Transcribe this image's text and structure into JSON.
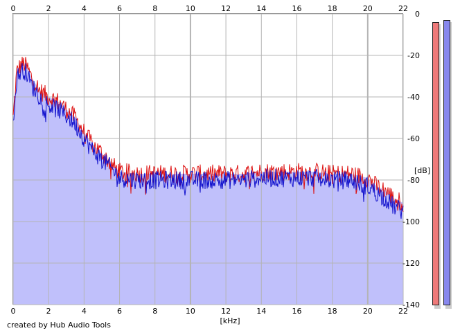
{
  "footer": {
    "credit": "created by Hub Audio Tools"
  },
  "colors": {
    "channel_1": "#dd1111",
    "channel_2": "#1111cc",
    "fill": "#c0c0fb",
    "grid": "#b4b4b4",
    "meter_1": "#ee7a7a",
    "meter_2": "#8888ee"
  },
  "chart_data": {
    "type": "area",
    "xlabel": "[kHz]",
    "ylabel": "[dB]",
    "xlim": [
      0,
      22
    ],
    "ylim": [
      -140,
      0
    ],
    "x_ticks": [
      "0",
      "2",
      "4",
      "6",
      "8",
      "10",
      "12",
      "14",
      "16",
      "18",
      "20",
      "22"
    ],
    "y_ticks": [
      "0",
      "-20",
      "-40",
      "-60",
      "-80",
      "-100",
      "-120",
      "-140"
    ],
    "grid": true,
    "legend": "none",
    "series": [
      {
        "x": [
          0,
          0.2,
          0.4,
          0.6,
          0.8,
          1,
          1.5,
          2,
          2.5,
          3,
          3.5,
          4,
          4.5,
          5,
          5.5,
          6,
          7,
          8,
          9,
          10,
          11,
          12,
          13,
          14,
          15,
          16,
          17,
          18,
          19,
          20,
          20.5,
          21,
          21.5,
          22
        ],
        "values": [
          -50,
          -28,
          -25,
          -24,
          -26,
          -30,
          -37,
          -40,
          -42,
          -46,
          -50,
          -57,
          -63,
          -67,
          -72,
          -76,
          -77,
          -77,
          -77,
          -77,
          -77,
          -77,
          -77,
          -76,
          -76,
          -76,
          -76,
          -77,
          -77,
          -79,
          -83,
          -85,
          -89,
          -91
        ]
      },
      {
        "x": [
          0,
          0.2,
          0.4,
          0.6,
          0.8,
          1,
          1.5,
          2,
          2.5,
          3,
          3.5,
          4,
          4.5,
          5,
          5.5,
          6,
          7,
          8,
          9,
          10,
          11,
          12,
          13,
          14,
          15,
          16,
          17,
          18,
          19,
          20,
          20.5,
          21,
          21.5,
          22
        ],
        "values": [
          -55,
          -31,
          -28,
          -27,
          -29,
          -34,
          -40,
          -44,
          -46,
          -49,
          -53,
          -60,
          -66,
          -70,
          -74,
          -79,
          -80,
          -80,
          -80,
          -80,
          -80,
          -80,
          -80,
          -79,
          -79,
          -79,
          -79,
          -80,
          -80,
          -83,
          -86,
          -89,
          -93,
          -95
        ]
      }
    ],
    "meters": [
      {
        "top_db": -4
      },
      {
        "top_db": -3
      }
    ]
  }
}
